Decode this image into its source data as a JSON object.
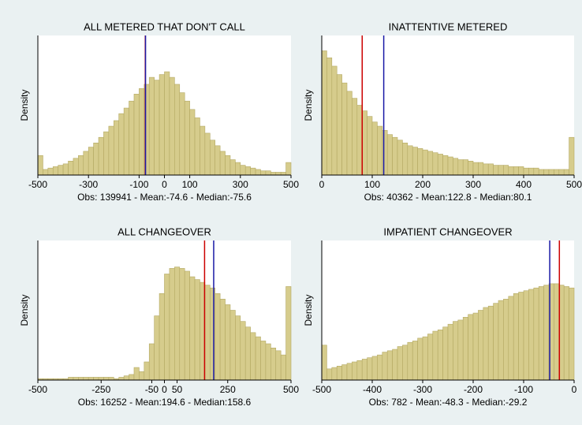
{
  "chart_data": [
    {
      "type": "histogram",
      "title": "ALL METERED THAT DON'T CALL",
      "ylabel": "Density",
      "note": "Obs: 139941 - Mean:-74.6 - Median:-75.6",
      "bins": [
        -500,
        -480,
        -460,
        -440,
        -420,
        -400,
        -380,
        -360,
        -340,
        -320,
        -300,
        -280,
        -260,
        -240,
        -220,
        -200,
        -180,
        -160,
        -140,
        -120,
        -100,
        -80,
        -60,
        -40,
        -20,
        0,
        20,
        40,
        60,
        80,
        100,
        120,
        140,
        160,
        180,
        200,
        220,
        240,
        260,
        280,
        300,
        320,
        340,
        360,
        380,
        400,
        420,
        440,
        460,
        480,
        500
      ],
      "values": [
        14,
        4,
        5,
        6,
        7,
        8,
        10,
        12,
        14,
        17,
        20,
        23,
        27,
        31,
        35,
        39,
        44,
        48,
        53,
        58,
        62,
        65,
        70,
        68,
        72,
        74,
        70,
        65,
        59,
        53,
        47,
        41,
        35,
        30,
        25,
        21,
        17,
        14,
        11,
        9,
        7,
        6,
        5,
        4,
        3,
        3,
        2,
        2,
        2,
        9
      ],
      "color": "#d6cc8c",
      "xlim": [
        -500,
        500
      ],
      "xticks": [
        -500,
        -300,
        -100,
        0,
        100,
        300,
        500
      ],
      "ylim": [
        0,
        100
      ],
      "vlines": [
        {
          "value": -75.6,
          "color": "#cc0000"
        },
        {
          "value": -74.6,
          "color": "#1a1aa6"
        }
      ]
    },
    {
      "type": "histogram",
      "title": "INATTENTIVE METERED",
      "ylabel": "Density",
      "note": "Obs: 40362 - Mean:122.8 - Median:80.1",
      "bins": [
        0,
        10,
        20,
        30,
        40,
        50,
        60,
        70,
        80,
        90,
        100,
        110,
        120,
        130,
        140,
        150,
        160,
        170,
        180,
        190,
        200,
        210,
        220,
        230,
        240,
        250,
        260,
        270,
        280,
        290,
        300,
        310,
        320,
        330,
        340,
        350,
        360,
        370,
        380,
        390,
        400,
        410,
        420,
        430,
        440,
        450,
        460,
        470,
        480,
        490,
        500
      ],
      "values": [
        89,
        84,
        78,
        72,
        66,
        60,
        55,
        50,
        46,
        42,
        38,
        35,
        32,
        29,
        27,
        25,
        23,
        21,
        20,
        19,
        18,
        17,
        16,
        15,
        14,
        13,
        12,
        11,
        11,
        10,
        9,
        9,
        8,
        8,
        7,
        7,
        7,
        6,
        6,
        6,
        5,
        5,
        5,
        4,
        4,
        4,
        4,
        4,
        4,
        27
      ],
      "color": "#d6cc8c",
      "xlim": [
        0,
        500
      ],
      "xticks": [
        0,
        100,
        200,
        300,
        400,
        500
      ],
      "ylim": [
        0,
        100
      ],
      "vlines": [
        {
          "value": 80.1,
          "color": "#cc0000"
        },
        {
          "value": 122.8,
          "color": "#1a1aa6"
        }
      ]
    },
    {
      "type": "histogram",
      "title": "ALL CHANGEOVER",
      "ylabel": "Density",
      "note": "Obs: 16252 - Mean:194.6 - Median:158.6",
      "bins": [
        -500,
        -480,
        -460,
        -440,
        -420,
        -400,
        -380,
        -360,
        -340,
        -320,
        -300,
        -280,
        -260,
        -240,
        -220,
        -200,
        -180,
        -160,
        -140,
        -120,
        -100,
        -80,
        -60,
        -40,
        -20,
        0,
        20,
        40,
        60,
        80,
        100,
        120,
        140,
        160,
        180,
        200,
        220,
        240,
        260,
        280,
        300,
        320,
        340,
        360,
        380,
        400,
        420,
        440,
        460,
        480,
        500
      ],
      "values": [
        1,
        1,
        1,
        1,
        1,
        1,
        2,
        2,
        2,
        2,
        2,
        2,
        2,
        2,
        2,
        1,
        2,
        3,
        4,
        9,
        6,
        13,
        26,
        46,
        62,
        76,
        80,
        81,
        80,
        78,
        74,
        72,
        70,
        68,
        66,
        62,
        58,
        54,
        50,
        46,
        42,
        38,
        34,
        31,
        28,
        26,
        23,
        21,
        18,
        67
      ],
      "color": "#d6cc8c",
      "xlim": [
        -500,
        500
      ],
      "xticks": [
        -500,
        -250,
        -50,
        0,
        50,
        250,
        500
      ],
      "ylim": [
        0,
        100
      ],
      "vlines": [
        {
          "value": 158.6,
          "color": "#cc0000"
        },
        {
          "value": 194.6,
          "color": "#1a1aa6"
        }
      ]
    },
    {
      "type": "histogram",
      "title": "IMPATIENT CHANGEOVER",
      "ylabel": "Density",
      "note": "Obs: 782 - Mean:-48.3 - Median:-29.2",
      "bins": [
        -500,
        -490,
        -480,
        -470,
        -460,
        -450,
        -440,
        -430,
        -420,
        -410,
        -400,
        -390,
        -380,
        -370,
        -360,
        -350,
        -340,
        -330,
        -320,
        -310,
        -300,
        -290,
        -280,
        -270,
        -260,
        -250,
        -240,
        -230,
        -220,
        -210,
        -200,
        -190,
        -180,
        -170,
        -160,
        -150,
        -140,
        -130,
        -120,
        -110,
        -100,
        -90,
        -80,
        -70,
        -60,
        -50,
        -40,
        -30,
        -20,
        -10,
        0
      ],
      "values": [
        25,
        8,
        9,
        10,
        11,
        12,
        13,
        14,
        15,
        16,
        17,
        18,
        20,
        21,
        22,
        24,
        25,
        27,
        28,
        30,
        31,
        33,
        35,
        36,
        38,
        40,
        42,
        43,
        45,
        47,
        48,
        50,
        52,
        53,
        55,
        57,
        58,
        60,
        62,
        63,
        64,
        65,
        66,
        67,
        68,
        69,
        69,
        68,
        67,
        66
      ],
      "color": "#d6cc8c",
      "xlim": [
        -500,
        0
      ],
      "xticks": [
        -500,
        -400,
        -300,
        -200,
        -100,
        0
      ],
      "ylim": [
        0,
        100
      ],
      "vlines": [
        {
          "value": -29.2,
          "color": "#cc0000"
        },
        {
          "value": -48.3,
          "color": "#1a1aa6"
        }
      ]
    }
  ]
}
